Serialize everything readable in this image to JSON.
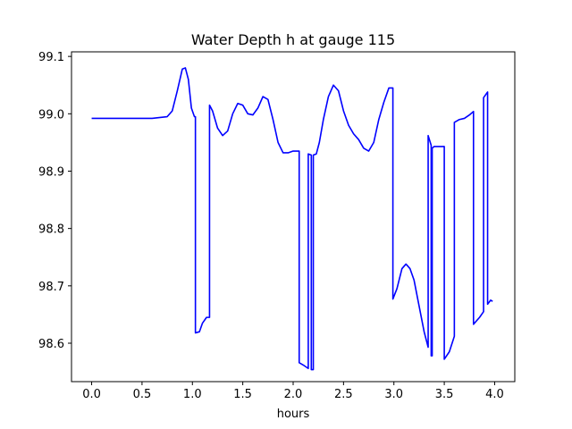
{
  "chart_data": {
    "type": "line",
    "title": "Water Depth h at gauge 115",
    "xlabel": "hours",
    "ylabel": "",
    "xlim": [
      -0.2,
      4.2
    ],
    "ylim": [
      98.533,
      99.108
    ],
    "x_ticks": [
      0.0,
      0.5,
      1.0,
      1.5,
      2.0,
      2.5,
      3.0,
      3.5,
      4.0
    ],
    "x_tick_labels": [
      "0.0",
      "0.5",
      "1.0",
      "1.5",
      "2.0",
      "2.5",
      "3.0",
      "3.5",
      "4.0"
    ],
    "y_ticks": [
      98.6,
      98.7,
      98.8,
      98.9,
      99.0,
      99.1
    ],
    "y_tick_labels": [
      "98.6",
      "98.7",
      "98.8",
      "98.9",
      "99.0",
      "99.1"
    ],
    "grid": false,
    "series": [
      {
        "color": "#0000ff",
        "x": [
          0.0,
          0.3,
          0.6,
          0.75,
          0.8,
          0.85,
          0.9,
          0.93,
          0.96,
          0.99,
          1.02,
          1.03,
          1.03,
          1.07,
          1.1,
          1.14,
          1.17,
          1.17,
          1.2,
          1.25,
          1.3,
          1.35,
          1.4,
          1.45,
          1.5,
          1.55,
          1.6,
          1.65,
          1.7,
          1.75,
          1.8,
          1.85,
          1.9,
          1.95,
          2.0,
          2.05,
          2.06,
          2.06,
          2.1,
          2.15,
          2.15,
          2.18,
          2.18,
          2.2,
          2.2,
          2.23,
          2.26,
          2.3,
          2.35,
          2.4,
          2.45,
          2.5,
          2.55,
          2.6,
          2.65,
          2.7,
          2.75,
          2.8,
          2.85,
          2.9,
          2.95,
          2.99,
          2.99,
          3.03,
          3.08,
          3.12,
          3.16,
          3.2,
          3.25,
          3.3,
          3.34,
          3.34,
          3.37,
          3.37,
          3.38,
          3.38,
          3.4,
          3.45,
          3.5,
          3.5,
          3.55,
          3.6,
          3.6,
          3.65,
          3.7,
          3.75,
          3.79,
          3.79,
          3.85,
          3.89,
          3.89,
          3.93,
          3.93,
          3.96,
          3.98
        ],
        "values": [
          98.992,
          98.992,
          98.992,
          98.995,
          99.005,
          99.04,
          99.078,
          99.08,
          99.06,
          99.01,
          98.995,
          98.995,
          98.618,
          98.62,
          98.635,
          98.645,
          98.645,
          99.015,
          99.005,
          98.975,
          98.962,
          98.97,
          99.0,
          99.018,
          99.015,
          99.0,
          98.998,
          99.01,
          99.03,
          99.025,
          98.99,
          98.95,
          98.932,
          98.932,
          98.935,
          98.935,
          98.935,
          98.566,
          98.562,
          98.556,
          98.93,
          98.928,
          98.554,
          98.554,
          98.928,
          98.93,
          98.95,
          98.99,
          99.03,
          99.05,
          99.04,
          99.005,
          98.98,
          98.965,
          98.955,
          98.94,
          98.935,
          98.95,
          98.99,
          99.02,
          99.045,
          99.045,
          98.677,
          98.695,
          98.73,
          98.738,
          98.73,
          98.71,
          98.665,
          98.62,
          98.593,
          98.962,
          98.945,
          98.578,
          98.578,
          98.94,
          98.943,
          98.943,
          98.943,
          98.572,
          98.585,
          98.612,
          98.985,
          98.99,
          98.992,
          98.998,
          99.004,
          98.633,
          98.645,
          98.655,
          99.028,
          99.038,
          98.668,
          98.675,
          98.673
        ]
      }
    ]
  }
}
